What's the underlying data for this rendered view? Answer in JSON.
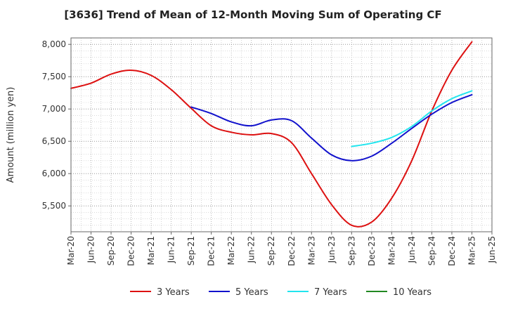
{
  "chart_data": {
    "type": "line",
    "title": "[3636]  Trend of Mean of 12-Month Moving Sum of Operating CF",
    "xlabel": "",
    "ylabel": "Amount (million yen)",
    "ylim": [
      5100,
      8100
    ],
    "yticks": [
      5500,
      6000,
      6500,
      7000,
      7500,
      8000
    ],
    "ytick_labels": [
      "5,500",
      "6,000",
      "6,500",
      "7,000",
      "7,500",
      "8,000"
    ],
    "x_tick_labels": [
      "Mar-20",
      "Jun-20",
      "Sep-20",
      "Dec-20",
      "Mar-21",
      "Jun-21",
      "Sep-21",
      "Dec-21",
      "Mar-22",
      "Jun-22",
      "Sep-22",
      "Dec-22",
      "Mar-23",
      "Jun-23",
      "Sep-23",
      "Dec-23",
      "Mar-24",
      "Jun-24",
      "Sep-24",
      "Dec-24",
      "Mar-25",
      "Jun-25"
    ],
    "grid": true,
    "legend_position": "bottom",
    "series": [
      {
        "name": "3 Years",
        "color": "#dd1111",
        "start_index": 0,
        "values": [
          7320,
          7400,
          7540,
          7600,
          7520,
          7300,
          7010,
          6740,
          6640,
          6600,
          6620,
          6480,
          6000,
          5520,
          5200,
          5250,
          5620,
          6200,
          6970,
          7600,
          8040
        ]
      },
      {
        "name": "5 Years",
        "color": "#1111cc",
        "start_index": 6,
        "values": [
          7030,
          6930,
          6800,
          6740,
          6830,
          6820,
          6550,
          6290,
          6200,
          6270,
          6470,
          6700,
          6920,
          7100,
          7220
        ]
      },
      {
        "name": "7 Years",
        "color": "#22e5ee",
        "start_index": 14,
        "values": [
          6420,
          6470,
          6560,
          6730,
          6970,
          7160,
          7280
        ]
      },
      {
        "name": "10 Years",
        "color": "#228822",
        "start_index": 0,
        "values": []
      }
    ]
  }
}
